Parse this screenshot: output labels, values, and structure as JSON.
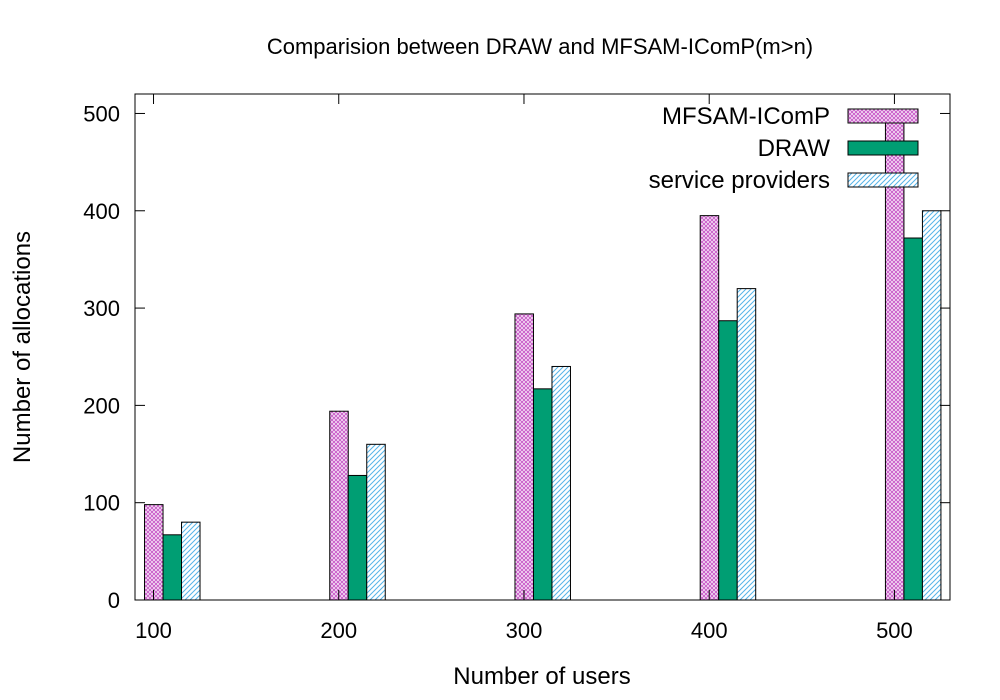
{
  "chart_data": {
    "type": "bar",
    "title": "Comparision between DRAW and MFSAM-IComP(m>n)",
    "xlabel": "Number of users",
    "ylabel": "Number of allocations",
    "categories": [
      100,
      200,
      300,
      400,
      500
    ],
    "xlim": [
      90,
      530
    ],
    "ylim": [
      0,
      520
    ],
    "xticks": [
      100,
      200,
      300,
      400,
      500
    ],
    "yticks": [
      0,
      100,
      200,
      300,
      400,
      500
    ],
    "grid": false,
    "legend_position": "top-right",
    "series": [
      {
        "name": "MFSAM-IComP",
        "values": [
          98,
          194,
          294,
          395,
          496
        ],
        "color": "#cc66cc",
        "pattern": "crosshatch"
      },
      {
        "name": "DRAW",
        "values": [
          67,
          128,
          217,
          287,
          372
        ],
        "color": "#009e73",
        "pattern": "solid"
      },
      {
        "name": "service providers",
        "values": [
          80,
          160,
          240,
          320,
          400
        ],
        "color": "#56b4e9",
        "pattern": "diagonal"
      }
    ]
  }
}
